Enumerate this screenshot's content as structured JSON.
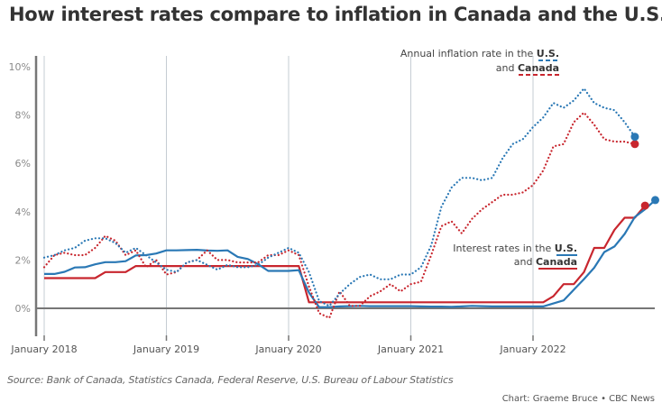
{
  "chart_data": {
    "type": "line",
    "title": "How interest rates compare to inflation in Canada and the U.S.",
    "xlabel": "",
    "ylabel": "",
    "ylim": [
      0,
      10
    ],
    "yticks": [
      0,
      2,
      4,
      6,
      8,
      10
    ],
    "ytick_labels": [
      "0%",
      "2%",
      "4%",
      "6%",
      "8%",
      "10%"
    ],
    "xticks": [
      "January 2018",
      "January 2019",
      "January 2020",
      "January 2021",
      "January 2022"
    ],
    "x_start": "2018-01",
    "grid": true,
    "series": [
      {
        "name": "Annual inflation rate in the U.S.",
        "key": "us_inflation",
        "style": "dotted",
        "color": "#2a78b5",
        "values": [
          2.1,
          2.2,
          2.4,
          2.5,
          2.8,
          2.9,
          2.9,
          2.7,
          2.3,
          2.5,
          2.2,
          1.9,
          1.6,
          1.5,
          1.9,
          2.0,
          1.8,
          1.6,
          1.8,
          1.7,
          1.7,
          1.8,
          2.1,
          2.3,
          2.5,
          2.3,
          1.5,
          0.3,
          0.1,
          0.6,
          1.0,
          1.3,
          1.4,
          1.2,
          1.2,
          1.4,
          1.4,
          1.7,
          2.6,
          4.2,
          5.0,
          5.4,
          5.4,
          5.3,
          5.4,
          6.2,
          6.8,
          7.0,
          7.5,
          7.9,
          8.5,
          8.3,
          8.6,
          9.1,
          8.5,
          8.3,
          8.2,
          7.7,
          7.1
        ]
      },
      {
        "name": "Annual inflation rate in Canada",
        "key": "ca_inflation",
        "style": "dotted",
        "color": "#c8262e",
        "values": [
          1.7,
          2.2,
          2.3,
          2.2,
          2.2,
          2.5,
          3.0,
          2.8,
          2.2,
          2.4,
          1.7,
          2.0,
          1.4,
          1.5,
          1.9,
          2.0,
          2.4,
          2.0,
          2.0,
          1.9,
          1.9,
          1.9,
          2.2,
          2.2,
          2.4,
          2.2,
          0.9,
          -0.2,
          -0.4,
          0.7,
          0.1,
          0.1,
          0.5,
          0.7,
          1.0,
          0.7,
          1.0,
          1.1,
          2.2,
          3.4,
          3.6,
          3.1,
          3.7,
          4.1,
          4.4,
          4.7,
          4.7,
          4.8,
          5.1,
          5.7,
          6.7,
          6.8,
          7.7,
          8.1,
          7.6,
          7.0,
          6.9,
          6.9,
          6.8
        ]
      },
      {
        "name": "Interest rates in the U.S.",
        "key": "us_rate",
        "style": "solid",
        "color": "#2a78b5",
        "values": [
          1.42,
          1.42,
          1.51,
          1.69,
          1.7,
          1.82,
          1.91,
          1.91,
          1.95,
          2.19,
          2.2,
          2.27,
          2.4,
          2.4,
          2.41,
          2.42,
          2.39,
          2.38,
          2.4,
          2.13,
          2.04,
          1.83,
          1.55,
          1.55,
          1.55,
          1.58,
          0.65,
          0.05,
          0.05,
          0.08,
          0.09,
          0.1,
          0.09,
          0.09,
          0.09,
          0.09,
          0.09,
          0.08,
          0.07,
          0.07,
          0.06,
          0.08,
          0.1,
          0.09,
          0.08,
          0.08,
          0.08,
          0.08,
          0.08,
          0.08,
          0.2,
          0.33,
          0.77,
          1.21,
          1.68,
          2.33,
          2.56,
          3.08,
          3.78,
          4.1,
          4.48
        ]
      },
      {
        "name": "Interest rates in Canada",
        "key": "ca_rate",
        "style": "solid",
        "color": "#c8262e",
        "values": [
          1.25,
          1.25,
          1.25,
          1.25,
          1.25,
          1.25,
          1.5,
          1.5,
          1.5,
          1.75,
          1.75,
          1.75,
          1.75,
          1.75,
          1.75,
          1.75,
          1.75,
          1.75,
          1.75,
          1.75,
          1.75,
          1.75,
          1.75,
          1.75,
          1.75,
          1.75,
          0.25,
          0.25,
          0.25,
          0.25,
          0.25,
          0.25,
          0.25,
          0.25,
          0.25,
          0.25,
          0.25,
          0.25,
          0.25,
          0.25,
          0.25,
          0.25,
          0.25,
          0.25,
          0.25,
          0.25,
          0.25,
          0.25,
          0.25,
          0.25,
          0.5,
          1.0,
          1.0,
          1.5,
          2.5,
          2.5,
          3.25,
          3.75,
          3.75,
          4.25
        ]
      }
    ],
    "end_points": {
      "us_inflation": 7.1,
      "ca_inflation": 6.8,
      "us_rate": 4.48,
      "ca_rate": 4.25
    },
    "annotations": {
      "inflation_label": {
        "line1": "Annual inflation rate in the ",
        "line1_bold": "U.S.",
        "line2": "and ",
        "line2_bold": "Canada"
      },
      "rates_label": {
        "line1": "Interest rates in the ",
        "line1_bold": "U.S.",
        "line2": "and ",
        "line2_bold": "Canada"
      }
    }
  },
  "source": "Source: Bank of Canada, Statistics Canada, Federal Reserve, U.S. Bureau of Labour Statistics",
  "credit": "Chart: Graeme Bruce • CBC News"
}
